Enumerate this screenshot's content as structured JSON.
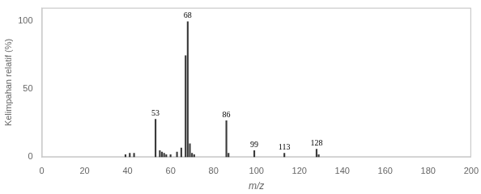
{
  "chart_data": {
    "type": "bar",
    "x": [
      39,
      41,
      43,
      53,
      55,
      56,
      57,
      58,
      60,
      63,
      65,
      67,
      68,
      69,
      70,
      71,
      86,
      87,
      99,
      113,
      128,
      129
    ],
    "values": [
      2,
      3,
      3,
      28,
      5,
      4,
      3,
      2,
      2,
      4,
      7,
      75,
      100,
      10,
      3,
      2,
      27,
      3,
      5,
      3,
      6,
      2
    ],
    "color": "#3a3a3a",
    "annotations": [
      {
        "x": 53,
        "text": "53"
      },
      {
        "x": 68,
        "text": "68"
      },
      {
        "x": 86,
        "text": "86"
      },
      {
        "x": 99,
        "text": "99"
      },
      {
        "x": 113,
        "text": "113"
      },
      {
        "x": 128,
        "text": "128"
      }
    ],
    "xlim": [
      0,
      200
    ],
    "ylim": [
      0,
      110
    ],
    "xticks": [
      0,
      20,
      40,
      60,
      80,
      100,
      120,
      140,
      160,
      180,
      200
    ],
    "yticks": [
      0,
      50,
      100
    ],
    "xlabel": "m/z",
    "ylabel": "Kelimpahan relatif (%)",
    "grid": false
  }
}
